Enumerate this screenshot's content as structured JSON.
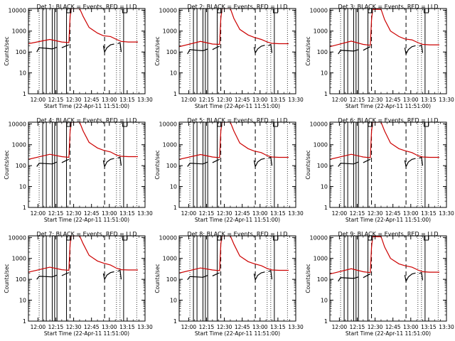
{
  "chart_data": {
    "type": "line",
    "figure_layout": "3x3 grid of log-scale time series panels",
    "time_unit": "minutes after 12:00 on 22-Apr-11",
    "xlim": [
      -8,
      90
    ],
    "ylim": [
      1,
      12000
    ],
    "yscale": "log",
    "xticks": [
      0,
      15,
      30,
      45,
      60,
      75,
      90
    ],
    "xtick_labels": [
      "12:00",
      "12:15",
      "12:30",
      "12:45",
      "13:00",
      "13:15",
      "13:30"
    ],
    "yticks": [
      1,
      10,
      100,
      1000,
      10000
    ],
    "ytick_labels": [
      "1",
      "10",
      "100",
      "1000",
      "10000"
    ],
    "ylabel": "Counts/sec",
    "xlabel": "Start Time (22-Apr-11 11:51:00)",
    "series_colors": {
      "events": "#000000",
      "lld": "#cc0000"
    },
    "markers": {
      "solid_lines": [
        4,
        7,
        12,
        14,
        16,
        24,
        72
      ],
      "dashed_lines": [
        27,
        56
      ],
      "dotted_lines": [
        1,
        24,
        66,
        69,
        83
      ],
      "bracket_symbols": [
        {
          "x": 26,
          "symbol": "S"
        },
        {
          "x": 73,
          "symbol": "L"
        }
      ]
    },
    "panels": [
      {
        "title": "Det 1: BLACK = Events, RED = LLD",
        "lld": {
          "x": [
            -8,
            10,
            20,
            26,
            27,
            28,
            35,
            38,
            43,
            50,
            55,
            61,
            66,
            70,
            76,
            84
          ],
          "y": [
            250,
            400,
            300,
            280,
            5000,
            12000,
            12000,
            5000,
            1500,
            800,
            600,
            550,
            400,
            320,
            300,
            300
          ]
        },
        "events": [
          {
            "x": [
              -1,
              1,
              7,
              12,
              16
            ],
            "y": [
              100,
              160,
              150,
              140,
              170
            ]
          },
          {
            "x": [
              20,
              24,
              26
            ],
            "y": [
              160,
              200,
              220
            ]
          },
          {
            "x": [
              55,
              56,
              58,
              61,
              64
            ],
            "y": [
              200,
              100,
              160,
              220,
              240
            ]
          },
          {
            "x": [
              67,
              69,
              70
            ],
            "y": [
              250,
              280,
              100
            ]
          }
        ]
      },
      {
        "title": "Det 2: BLACK = Events, RED = LLD",
        "lld": {
          "x": [
            -8,
            10,
            20,
            26,
            27,
            28,
            35,
            38,
            43,
            50,
            55,
            61,
            66,
            70,
            76,
            84
          ],
          "y": [
            180,
            320,
            240,
            230,
            4000,
            12000,
            12000,
            4000,
            1200,
            650,
            500,
            400,
            300,
            260,
            250,
            250
          ]
        },
        "events": [
          {
            "x": [
              -1,
              1,
              7,
              12,
              16
            ],
            "y": [
              80,
              130,
              120,
              115,
              140
            ]
          },
          {
            "x": [
              20,
              24,
              26
            ],
            "y": [
              130,
              170,
              190
            ]
          },
          {
            "x": [
              55,
              56,
              58,
              61,
              64
            ],
            "y": [
              170,
              90,
              140,
              190,
              210
            ]
          },
          {
            "x": [
              67,
              69,
              70
            ],
            "y": [
              200,
              230,
              90
            ]
          }
        ]
      },
      {
        "title": "Det 3: BLACK = Events, RED = LLD",
        "lld": {
          "x": [
            -8,
            10,
            20,
            26,
            27,
            28,
            35,
            38,
            43,
            50,
            55,
            61,
            66,
            70,
            76,
            84
          ],
          "y": [
            180,
            330,
            230,
            210,
            3500,
            11000,
            11000,
            3500,
            1000,
            550,
            420,
            380,
            280,
            230,
            220,
            220
          ]
        },
        "events": [
          {
            "x": [
              -1,
              1,
              7,
              12,
              16
            ],
            "y": [
              80,
              120,
              115,
              110,
              130
            ]
          },
          {
            "x": [
              20,
              24,
              26
            ],
            "y": [
              120,
              160,
              180
            ]
          },
          {
            "x": [
              55,
              56,
              58,
              61,
              64
            ],
            "y": [
              160,
              80,
              130,
              180,
              200
            ]
          },
          {
            "x": [
              67,
              69,
              70
            ],
            "y": [
              190,
              210,
              90
            ]
          }
        ]
      },
      {
        "title": "Det 4: BLACK = Events, RED = LLD",
        "lld": {
          "x": [
            -8,
            10,
            20,
            26,
            27,
            28,
            35,
            38,
            43,
            50,
            55,
            61,
            66,
            70,
            76,
            84
          ],
          "y": [
            200,
            350,
            270,
            250,
            4500,
            12000,
            12000,
            4500,
            1300,
            700,
            550,
            450,
            320,
            280,
            270,
            270
          ]
        },
        "events": [
          {
            "x": [
              -1,
              1,
              7,
              12,
              16
            ],
            "y": [
              90,
              130,
              125,
              120,
              150
            ]
          },
          {
            "x": [
              20,
              24,
              26
            ],
            "y": [
              140,
              180,
              200
            ]
          },
          {
            "x": [
              55,
              56,
              58,
              61,
              64
            ],
            "y": [
              180,
              90,
              150,
              200,
              220
            ]
          },
          {
            "x": [
              67,
              69,
              70
            ],
            "y": [
              230,
              250,
              100
            ]
          }
        ]
      },
      {
        "title": "Det 5: BLACK = Events, RED = LLD",
        "lld": {
          "x": [
            -8,
            10,
            20,
            26,
            27,
            28,
            35,
            38,
            43,
            50,
            55,
            61,
            66,
            70,
            76,
            84
          ],
          "y": [
            200,
            340,
            260,
            240,
            4500,
            12000,
            12000,
            4500,
            1200,
            650,
            500,
            420,
            300,
            260,
            250,
            250
          ]
        },
        "events": [
          {
            "x": [
              -1,
              1,
              7,
              12,
              16
            ],
            "y": [
              90,
              130,
              125,
              120,
              150
            ]
          },
          {
            "x": [
              20,
              24,
              26
            ],
            "y": [
              140,
              180,
              200
            ]
          },
          {
            "x": [
              55,
              56,
              58,
              61,
              64
            ],
            "y": [
              180,
              90,
              150,
              200,
              220
            ]
          },
          {
            "x": [
              67,
              69,
              70
            ],
            "y": [
              230,
              250,
              100
            ]
          }
        ]
      },
      {
        "title": "Det 6: BLACK = Events, RED = LLD",
        "lld": {
          "x": [
            -8,
            10,
            20,
            26,
            27,
            28,
            35,
            38,
            43,
            50,
            55,
            61,
            66,
            70,
            76,
            84
          ],
          "y": [
            200,
            350,
            260,
            240,
            4500,
            12000,
            12000,
            4500,
            1200,
            650,
            520,
            420,
            300,
            260,
            250,
            250
          ]
        },
        "events": [
          {
            "x": [
              -1,
              1,
              7,
              12,
              16
            ],
            "y": [
              90,
              130,
              125,
              120,
              150
            ]
          },
          {
            "x": [
              20,
              24,
              26
            ],
            "y": [
              140,
              180,
              200
            ]
          },
          {
            "x": [
              55,
              56,
              58,
              61,
              64
            ],
            "y": [
              180,
              90,
              150,
              200,
              220
            ]
          },
          {
            "x": [
              67,
              69,
              70
            ],
            "y": [
              230,
              250,
              100
            ]
          }
        ]
      },
      {
        "title": "Det 7: BLACK = Events, RED = LLD",
        "lld": {
          "x": [
            -8,
            10,
            20,
            26,
            27,
            28,
            35,
            38,
            43,
            50,
            55,
            61,
            66,
            70,
            76,
            84
          ],
          "y": [
            220,
            380,
            290,
            270,
            5000,
            12000,
            12000,
            5000,
            1400,
            750,
            600,
            480,
            340,
            290,
            280,
            280
          ]
        },
        "events": [
          {
            "x": [
              -1,
              1,
              7,
              12,
              16
            ],
            "y": [
              100,
              140,
              135,
              130,
              160
            ]
          },
          {
            "x": [
              20,
              24,
              26
            ],
            "y": [
              150,
              190,
              210
            ]
          },
          {
            "x": [
              55,
              56,
              58,
              61,
              64
            ],
            "y": [
              190,
              100,
              160,
              210,
              230
            ]
          },
          {
            "x": [
              67,
              69,
              70
            ],
            "y": [
              240,
              270,
              100
            ]
          }
        ]
      },
      {
        "title": "Det 8: BLACK = Events, RED = LLD",
        "lld": {
          "x": [
            -8,
            10,
            20,
            26,
            27,
            28,
            35,
            38,
            43,
            50,
            55,
            61,
            66,
            70,
            76,
            84
          ],
          "y": [
            200,
            350,
            280,
            260,
            4800,
            12000,
            12000,
            4800,
            1300,
            700,
            560,
            450,
            330,
            280,
            270,
            270
          ]
        },
        "events": [
          {
            "x": [
              -1,
              1,
              7,
              12,
              16
            ],
            "y": [
              95,
              135,
              130,
              125,
              155
            ]
          },
          {
            "x": [
              20,
              24,
              26
            ],
            "y": [
              145,
              185,
              205
            ]
          },
          {
            "x": [
              55,
              56,
              58,
              61,
              64
            ],
            "y": [
              185,
              95,
              155,
              205,
              225
            ]
          },
          {
            "x": [
              67,
              69,
              70
            ],
            "y": [
              235,
              260,
              100
            ]
          }
        ]
      },
      {
        "title": "Det 9: BLACK = Events, RED = LLD",
        "lld": {
          "x": [
            -8,
            10,
            20,
            26,
            27,
            28,
            35,
            38,
            43,
            50,
            55,
            61,
            66,
            70,
            76,
            84
          ],
          "y": [
            180,
            320,
            230,
            210,
            3500,
            11000,
            11000,
            3500,
            1000,
            550,
            450,
            380,
            280,
            230,
            220,
            220
          ]
        },
        "events": [
          {
            "x": [
              -1,
              1,
              7,
              12,
              16
            ],
            "y": [
              80,
              120,
              115,
              110,
              130
            ]
          },
          {
            "x": [
              20,
              24,
              26
            ],
            "y": [
              120,
              160,
              180
            ]
          },
          {
            "x": [
              55,
              56,
              58,
              61,
              64
            ],
            "y": [
              160,
              80,
              130,
              180,
              200
            ]
          },
          {
            "x": [
              67,
              69,
              70
            ],
            "y": [
              190,
              210,
              90
            ]
          }
        ]
      }
    ]
  }
}
